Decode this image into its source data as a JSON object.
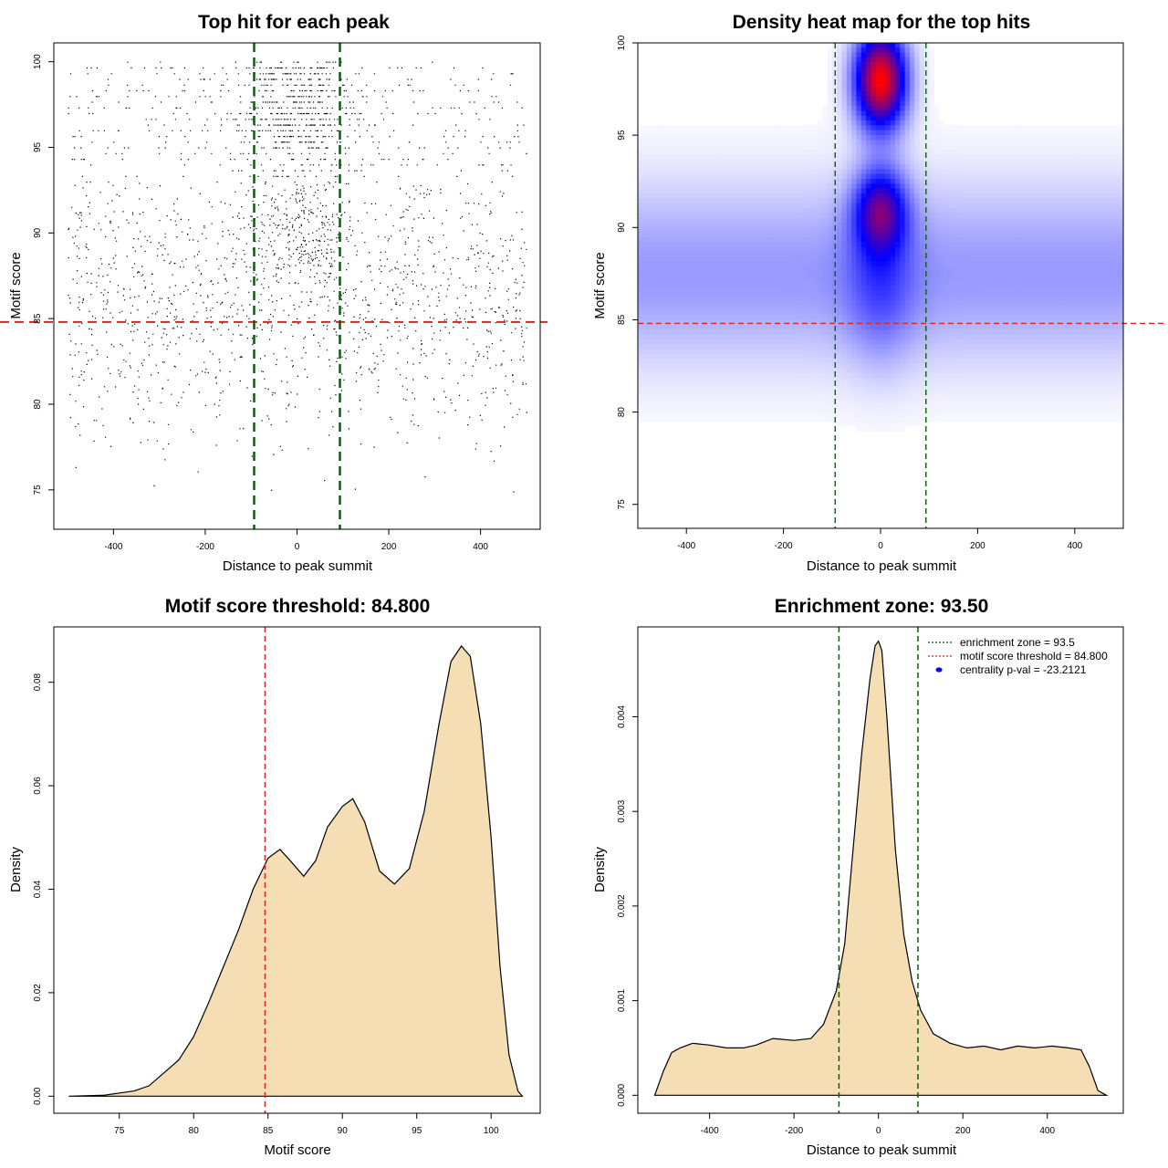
{
  "colors": {
    "points": "#000000",
    "threshold": "#dd2222",
    "zone": "#006400",
    "fill": "#f5deb3",
    "heat_low": "#ffffff",
    "heat_mid": "#0000ff",
    "heat_high": "#ff0000",
    "legend_dot": "#0000ff"
  },
  "chart_data": [
    {
      "id": "top-hits",
      "type": "scatter",
      "title": "Top hit for each peak",
      "xlabel": "Distance to peak summit",
      "ylabel": "Motif score",
      "xlim": [
        -530,
        530
      ],
      "ylim": [
        72.7,
        101.1
      ],
      "xticks": [
        -400,
        -200,
        0,
        200,
        400
      ],
      "yticks": [
        75,
        80,
        85,
        90,
        95,
        100
      ],
      "threshold": 84.8,
      "zone": [
        -93.5,
        93.5
      ],
      "scatter_model": {
        "x_range": [
          -500,
          500
        ],
        "score_range": [
          73.6,
          100
        ],
        "n_points": 9000,
        "summit_center": 0,
        "summit_width": 70
      }
    },
    {
      "id": "heatmap",
      "type": "heatmap",
      "title": "Density heat map for the top hits",
      "xlabel": "Distance to peak summit",
      "ylabel": "Motif score",
      "xlim": [
        -500,
        500
      ],
      "ylim": [
        73.7,
        100
      ],
      "xticks": [
        -400,
        -200,
        0,
        200,
        400
      ],
      "yticks": [
        75,
        80,
        85,
        90,
        95,
        100
      ],
      "threshold": 84.8,
      "zone": [
        -93.5,
        93.5
      ],
      "hotspots": [
        {
          "x": 0,
          "y": 98,
          "sx": 38,
          "sy": 1.9,
          "weight": 1.0
        },
        {
          "x": 0,
          "y": 91,
          "sx": 38,
          "sy": 1.6,
          "weight": 0.55
        },
        {
          "x": 0,
          "y": 87,
          "sx": 50,
          "sy": 3.0,
          "weight": 0.2
        }
      ],
      "background_band": {
        "y": 87.5,
        "sy": 3.5,
        "weight": 0.2
      }
    },
    {
      "id": "score-density",
      "type": "area",
      "title": "Motif score threshold: 84.800",
      "xlabel": "Motif score",
      "ylabel": "Density",
      "xlim": [
        70.6,
        103.3
      ],
      "ylim": [
        -0.0033,
        0.0907
      ],
      "xticks": [
        75,
        80,
        85,
        90,
        95,
        100
      ],
      "yticks": [
        0.0,
        0.02,
        0.04,
        0.06,
        0.08
      ],
      "ytick_labels": [
        "0.00",
        "0.02",
        "0.04",
        "0.06",
        "0.08"
      ],
      "threshold": 84.8,
      "x": [
        71.6,
        74,
        76,
        77,
        78,
        79,
        80,
        81,
        82,
        83,
        84,
        85,
        85.8,
        86.5,
        87.4,
        88.2,
        89,
        90,
        90.7,
        91.5,
        92.5,
        93.5,
        94.5,
        95.5,
        96.5,
        97.3,
        98,
        98.6,
        99.3,
        100,
        100.6,
        101.2,
        101.8,
        102.1
      ],
      "y": [
        0.0,
        0.0002,
        0.001,
        0.002,
        0.0045,
        0.007,
        0.0115,
        0.018,
        0.025,
        0.032,
        0.04,
        0.046,
        0.0477,
        0.0455,
        0.0425,
        0.0455,
        0.052,
        0.056,
        0.0575,
        0.053,
        0.0435,
        0.041,
        0.044,
        0.055,
        0.072,
        0.084,
        0.087,
        0.085,
        0.072,
        0.05,
        0.025,
        0.008,
        0.001,
        0.0
      ]
    },
    {
      "id": "position-density",
      "type": "area",
      "title": "Enrichment zone: 93.50",
      "xlabel": "Distance to peak summit",
      "ylabel": "Density",
      "xlim": [
        -570,
        580
      ],
      "ylim": [
        -0.00019,
        0.00495
      ],
      "xticks": [
        -400,
        -200,
        0,
        200,
        400
      ],
      "yticks": [
        0.0,
        0.001,
        0.002,
        0.003,
        0.004
      ],
      "ytick_labels": [
        "0.000",
        "0.001",
        "0.002",
        "0.003",
        "0.004"
      ],
      "zone": [
        -93.5,
        93.5
      ],
      "x": [
        -530,
        -510,
        -490,
        -470,
        -440,
        -400,
        -360,
        -320,
        -290,
        -250,
        -200,
        -160,
        -130,
        -100,
        -80,
        -60,
        -40,
        -20,
        -8,
        0,
        8,
        20,
        40,
        60,
        80,
        100,
        130,
        170,
        210,
        250,
        290,
        330,
        370,
        410,
        450,
        480,
        500,
        520,
        540
      ],
      "y": [
        0.0,
        0.00025,
        0.00045,
        0.0005,
        0.00055,
        0.00053,
        0.0005,
        0.0005,
        0.00053,
        0.0006,
        0.00058,
        0.0006,
        0.00075,
        0.0011,
        0.0016,
        0.0026,
        0.0036,
        0.0044,
        0.00475,
        0.0048,
        0.0047,
        0.004,
        0.0026,
        0.0017,
        0.0012,
        0.0009,
        0.00065,
        0.00055,
        0.0005,
        0.00052,
        0.00048,
        0.00052,
        0.0005,
        0.00052,
        0.0005,
        0.00048,
        0.0003,
        5e-05,
        0.0
      ],
      "legend": [
        {
          "symbol": "dotted-green",
          "label": "enrichment zone = 93.5"
        },
        {
          "symbol": "dotted-red",
          "label": "motif score threshold = 84.800"
        },
        {
          "symbol": "dot-blue",
          "label": "centrality p-val = -23.2121"
        }
      ]
    }
  ]
}
